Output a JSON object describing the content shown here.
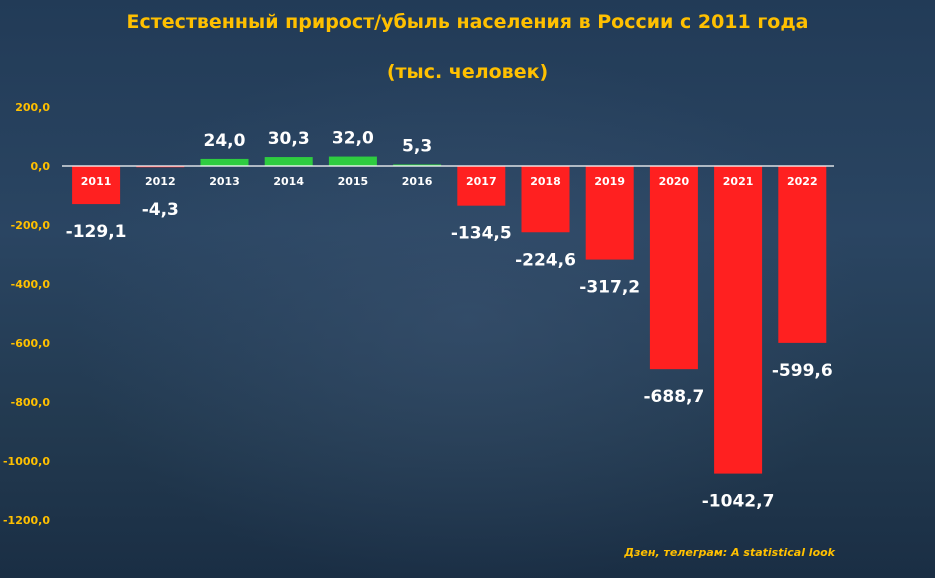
{
  "title": "Естественный прирост/убыль населения в России с 2011 года",
  "subtitle": "(тыс. человек)",
  "source": "Дзен, телеграм: A statistical look",
  "colors": {
    "positive": "#2ecc40",
    "negative": "#ff2020",
    "text_accent": "#ffc000",
    "value_label": "#ffffff"
  },
  "chart_data": {
    "type": "bar",
    "categories": [
      "2011",
      "2012",
      "2013",
      "2014",
      "2015",
      "2016",
      "2017",
      "2018",
      "2019",
      "2020",
      "2021",
      "2022"
    ],
    "values": [
      -129.1,
      -4.3,
      24.0,
      30.3,
      32.0,
      5.3,
      -134.5,
      -224.6,
      -317.2,
      -688.7,
      -1042.7,
      -599.6
    ],
    "value_labels": [
      "-129,1",
      "-4,3",
      "24,0",
      "30,3",
      "32,0",
      "5,3",
      "-134,5",
      "-224,6",
      "-317,2",
      "-688,7",
      "-1042,7",
      "-599,6"
    ],
    "yticks": [
      "200,0",
      "0,0",
      "-200,0",
      "-400,0",
      "-600,0",
      "-800,0",
      "-1000,0",
      "-1200,0"
    ],
    "ytick_values": [
      200,
      0,
      -200,
      -400,
      -600,
      -800,
      -1000,
      -1200
    ],
    "ylim": [
      -1200,
      200
    ],
    "grid": false,
    "legend": "none"
  }
}
